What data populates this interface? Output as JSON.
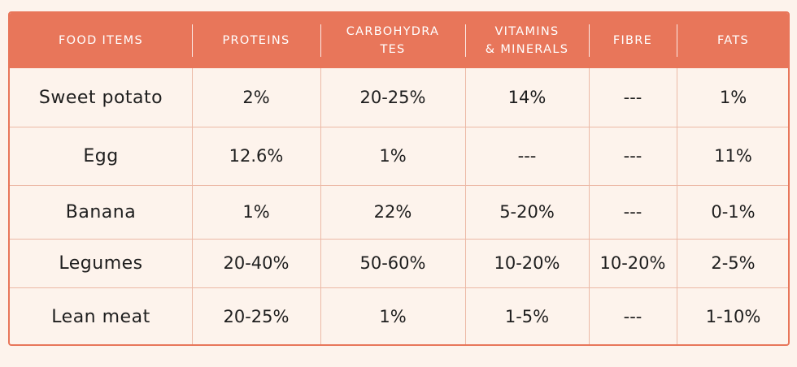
{
  "table": {
    "headers": [
      "FOOD ITEMS",
      "PROTEINS",
      "CARBOHYDRA\nTES",
      "VITAMINS\n& MINERALS",
      "FIBRE",
      "FATS"
    ],
    "rows": [
      [
        "Sweet potato",
        "2%",
        "20-25%",
        "14%",
        "---",
        "1%"
      ],
      [
        "Egg",
        "12.6%",
        "1%",
        "---",
        "---",
        "11%"
      ],
      [
        "Banana",
        "1%",
        "22%",
        "5-20%",
        "---",
        "0-1%"
      ],
      [
        "Legumes",
        "20-40%",
        "50-60%",
        "10-20%",
        "10-20%",
        "2-5%"
      ],
      [
        "Lean meat",
        "20-25%",
        "1%",
        "1-5%",
        "---",
        "1-10%"
      ]
    ]
  },
  "colors": {
    "header_bg": "#e8765a",
    "border": "#e8765a",
    "grid": "#ecb9a6",
    "body_bg": "#fdf3ec",
    "text": "#1e1e1e"
  }
}
